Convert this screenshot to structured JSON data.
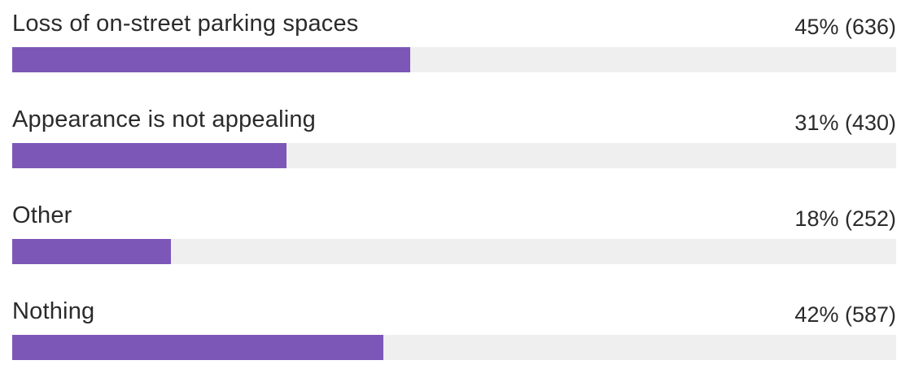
{
  "colors": {
    "bar_fill": "#7c57b8",
    "bar_track": "#efefef",
    "text": "#2b2b2b"
  },
  "chart_data": {
    "type": "bar",
    "orientation": "horizontal",
    "categories": [
      "Loss of on-street parking spaces",
      "Appearance is not appealing",
      "Other",
      "Nothing"
    ],
    "values": [
      45,
      31,
      18,
      42
    ],
    "counts": [
      636,
      430,
      252,
      587
    ],
    "value_labels": [
      "45% (636)",
      "31% (430)",
      "18% (252)",
      "42% (587)"
    ],
    "unit": "%",
    "xlim": [
      0,
      100
    ],
    "title": "",
    "xlabel": "",
    "ylabel": "",
    "grid": false,
    "legend": "none"
  }
}
